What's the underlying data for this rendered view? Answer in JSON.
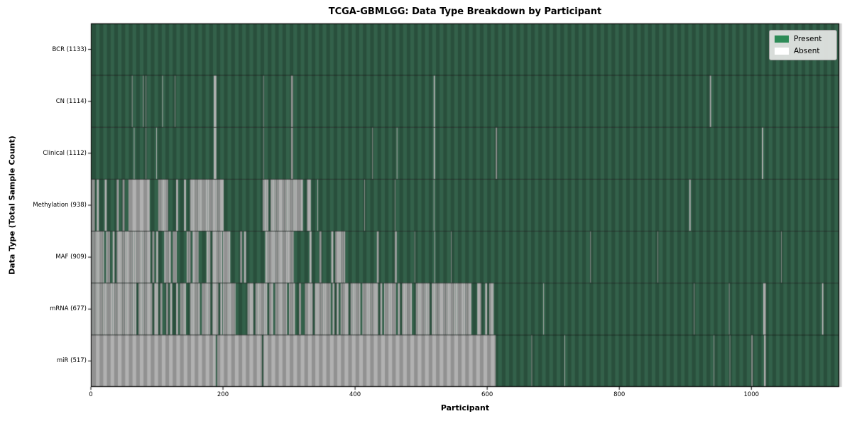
{
  "chart_data": {
    "type": "heatmap",
    "title": "TCGA-GBMLGG: Data Type Breakdown by Participant",
    "xlabel": "Participant",
    "ylabel": "Data Type (Total Sample Count)",
    "x_ticks": [
      0,
      200,
      400,
      600,
      800,
      1000
    ],
    "n_participants": 1133,
    "grid": false,
    "legend_position": "upper-right",
    "legend": [
      {
        "label": "Present",
        "color": "#2e8b57"
      },
      {
        "label": "Absent",
        "color": "#ffffff"
      }
    ],
    "colors": {
      "present_render": "#33614a",
      "absent_render": "#b1b1b1",
      "band_overlay": "rgba(0,0,0,0.18)",
      "row_separator": "rgba(0,0,0,0.6)",
      "frame": "#000000",
      "tick": "#000000"
    },
    "rows": [
      {
        "data_type": "BCR",
        "total": 1133,
        "label": "BCR (1133)",
        "absent_segments": []
      },
      {
        "data_type": "CN",
        "total": 1114,
        "label": "CN (1114)",
        "absent_segments": [
          [
            62,
            63
          ],
          [
            79,
            80
          ],
          [
            83,
            84
          ],
          [
            108,
            109
          ],
          [
            127,
            128
          ],
          [
            186,
            190
          ],
          [
            261,
            262
          ],
          [
            303,
            306
          ],
          [
            519,
            521
          ],
          [
            937,
            939
          ]
        ]
      },
      {
        "data_type": "Clinical",
        "total": 1112,
        "label": "Clinical (1112)",
        "absent_segments": [
          [
            65,
            66
          ],
          [
            83,
            84
          ],
          [
            99,
            100
          ],
          [
            186,
            190
          ],
          [
            261,
            262
          ],
          [
            303,
            306
          ],
          [
            426,
            427
          ],
          [
            463,
            464
          ],
          [
            519,
            521
          ],
          [
            613,
            615
          ],
          [
            1016,
            1018
          ]
        ]
      },
      {
        "data_type": "Methylation",
        "total": 938,
        "label": "Methylation (938)",
        "absent_segments": [
          [
            0,
            57,
            0.42
          ],
          [
            57,
            89,
            1
          ],
          [
            102,
            194,
            0.72
          ],
          [
            194,
            201,
            1
          ],
          [
            260,
            300,
            0.9
          ],
          [
            300,
            333,
            0.85
          ],
          [
            343,
            344,
            1
          ],
          [
            414,
            415,
            1
          ],
          [
            460,
            461,
            1
          ],
          [
            519,
            520,
            1
          ],
          [
            906,
            908,
            1
          ]
        ]
      },
      {
        "data_type": "MAF",
        "total": 909,
        "label": "MAF (909)",
        "absent_segments": [
          [
            0,
            20,
            0.92
          ],
          [
            20,
            33,
            0.4
          ],
          [
            33,
            90,
            0.85
          ],
          [
            90,
            118,
            0.5
          ],
          [
            118,
            200,
            0.4
          ],
          [
            200,
            208,
            1
          ],
          [
            208,
            264,
            0.08
          ],
          [
            264,
            304,
            0.9
          ],
          [
            304,
            376,
            0.32
          ],
          [
            376,
            465,
            0.22
          ],
          [
            490,
            491,
            1
          ],
          [
            520,
            521,
            1
          ],
          [
            545,
            546,
            1
          ],
          [
            756,
            757,
            1
          ],
          [
            858,
            859,
            1
          ],
          [
            1045,
            1046,
            1
          ]
        ]
      },
      {
        "data_type": "mRNA",
        "total": 677,
        "label": "mRNA (677)",
        "absent_segments": [
          [
            0,
            93,
            0.93
          ],
          [
            93,
            172,
            0.6
          ],
          [
            172,
            190,
            0.85
          ],
          [
            190,
            200,
            0.15
          ],
          [
            200,
            219,
            0.9
          ],
          [
            219,
            240,
            0.12
          ],
          [
            240,
            610,
            0.76
          ],
          [
            685,
            686,
            1
          ],
          [
            913,
            914,
            1
          ],
          [
            966,
            967,
            1
          ],
          [
            1018,
            1022,
            1
          ],
          [
            1107,
            1109,
            1
          ]
        ]
      },
      {
        "data_type": "miR",
        "total": 517,
        "label": "miR (517)",
        "absent_segments": [
          [
            0,
            189,
            1
          ],
          [
            191,
            259,
            1
          ],
          [
            261,
            613,
            1
          ],
          [
            667,
            668,
            1
          ],
          [
            717,
            718,
            1
          ],
          [
            943,
            944,
            1
          ],
          [
            967,
            968,
            1
          ],
          [
            1000,
            1002,
            1
          ],
          [
            1019,
            1022,
            1
          ]
        ]
      }
    ]
  }
}
